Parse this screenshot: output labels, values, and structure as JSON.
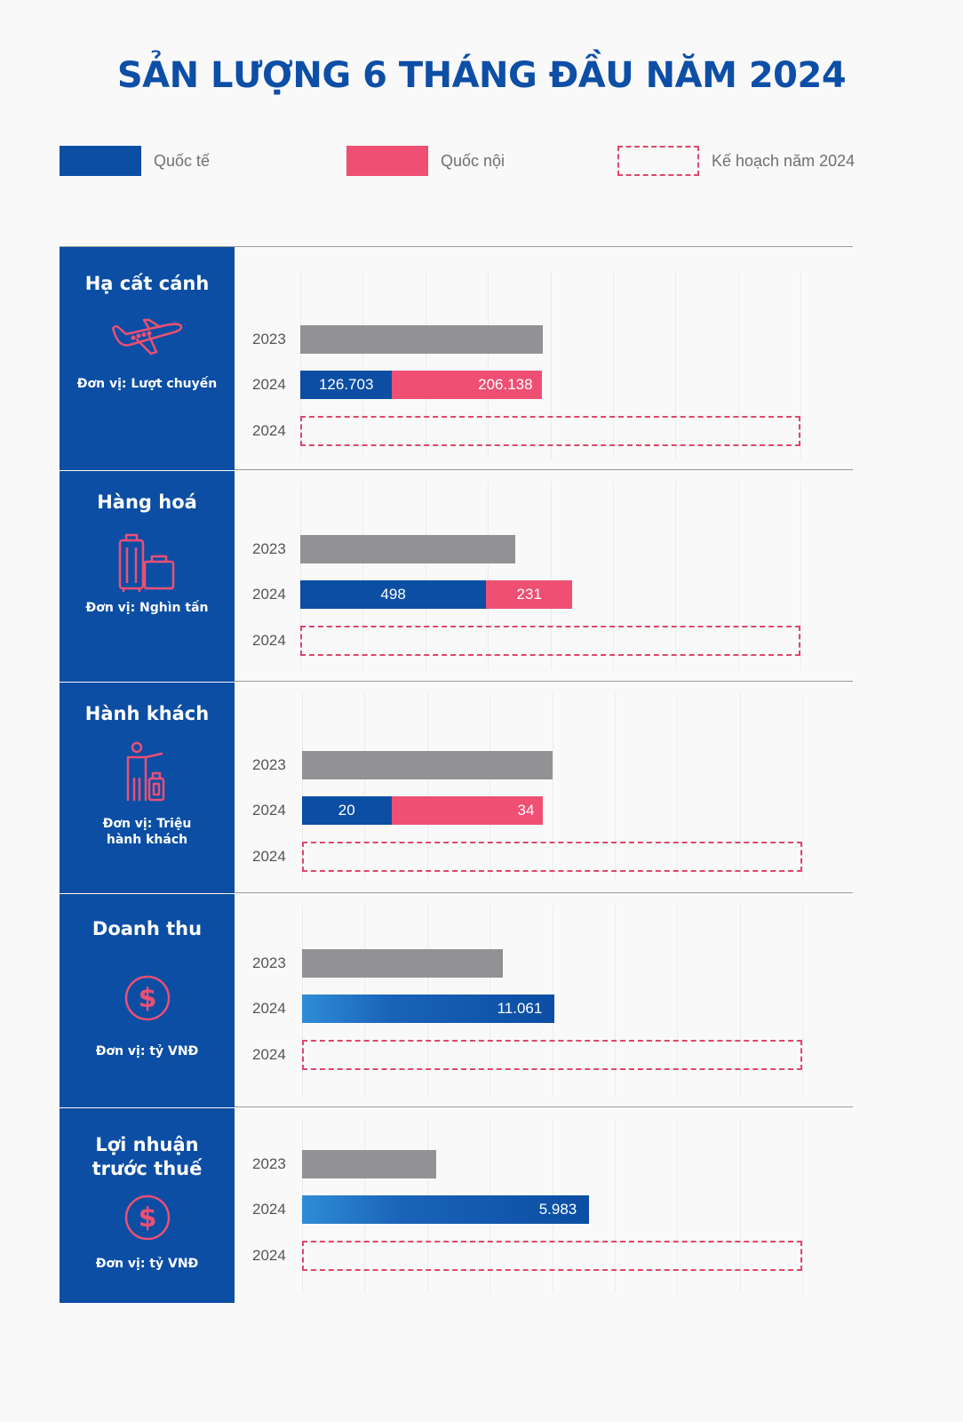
{
  "title": "SẢN LƯỢNG 6 THÁNG ĐẦU NĂM 2024",
  "legend": [
    {
      "label": "Quốc tế",
      "color": "#0b4ea4",
      "style": "solid"
    },
    {
      "label": "Quốc nội",
      "color": "#ee4f73",
      "style": "solid"
    },
    {
      "label": "Kế hoạch năm 2024",
      "color": "#e0466a",
      "style": "dashed"
    }
  ],
  "colors": {
    "panel": "#0b4ea4",
    "bar_2023": "#929295",
    "international": "#0b4ea4",
    "domestic": "#ee4f73",
    "plan": "#e0466a"
  },
  "panels": [
    {
      "title": "Hạ cất cánh",
      "icon": "airplane-icon",
      "unit": "Đơn vị: Lượt chuyến",
      "rows": [
        "2023",
        "2024",
        "2024"
      ]
    },
    {
      "title": "Hàng hoá",
      "icon": "luggage-icon",
      "unit": "Đơn vị: Nghìn tấn",
      "rows": [
        "2023",
        "2024",
        "2024"
      ]
    },
    {
      "title": "Hành khách",
      "icon": "passenger-icon",
      "unit": "Đơn vị: Triệu hành khách",
      "rows": [
        "2023",
        "2024",
        "2024"
      ]
    },
    {
      "title": "Doanh thu",
      "icon": "dollar-icon",
      "unit": "Đơn vị: tỷ VNĐ",
      "rows": [
        "2023",
        "2024",
        "2024"
      ]
    },
    {
      "title": "Lợi nhuận trước thuế",
      "icon": "dollar-icon",
      "unit": "Đơn vị: tỷ VNĐ",
      "rows": [
        "2023",
        "2024",
        "2024"
      ]
    }
  ],
  "chart_data": [
    {
      "type": "bar",
      "orientation": "horizontal",
      "title": "Hạ cất cánh",
      "series": [
        {
          "name": "2023",
          "values": [
            335000
          ]
        },
        {
          "name": "Quốc tế",
          "values": [
            126703
          ],
          "label": "126.703"
        },
        {
          "name": "Quốc nội",
          "values": [
            206138
          ],
          "label": "206.138"
        },
        {
          "name": "Kế hoạch năm 2024",
          "values": [
            690000
          ]
        }
      ]
    },
    {
      "type": "bar",
      "orientation": "horizontal",
      "title": "Hàng hoá",
      "series": [
        {
          "name": "2023",
          "values": [
            575
          ]
        },
        {
          "name": "Quốc tế",
          "values": [
            498
          ],
          "label": "498"
        },
        {
          "name": "Quốc nội",
          "values": [
            231
          ],
          "label": "231"
        },
        {
          "name": "Kế hoạch năm 2024",
          "values": [
            1340
          ]
        }
      ]
    },
    {
      "type": "bar",
      "orientation": "horizontal",
      "title": "Hành khách",
      "series": [
        {
          "name": "2023",
          "values": [
            56
          ]
        },
        {
          "name": "Quốc tế",
          "values": [
            20
          ],
          "label": "20"
        },
        {
          "name": "Quốc nội",
          "values": [
            34
          ],
          "label": "34"
        },
        {
          "name": "Kế hoạch năm 2024",
          "values": [
            112
          ]
        }
      ]
    },
    {
      "type": "bar",
      "orientation": "horizontal",
      "title": "Doanh thu",
      "series": [
        {
          "name": "2023",
          "values": [
            8800
          ]
        },
        {
          "name": "2024",
          "values": [
            11061
          ],
          "label": "11.061"
        },
        {
          "name": "Kế hoạch năm 2024",
          "values": [
            21900
          ]
        }
      ]
    },
    {
      "type": "bar",
      "orientation": "horizontal",
      "title": "Lợi nhuận trước thuế",
      "series": [
        {
          "name": "2023",
          "values": [
            2800
          ]
        },
        {
          "name": "2024",
          "values": [
            5983
          ],
          "label": "5.983"
        },
        {
          "name": "Kế hoạch năm 2024",
          "values": [
            10420
          ]
        }
      ]
    }
  ]
}
